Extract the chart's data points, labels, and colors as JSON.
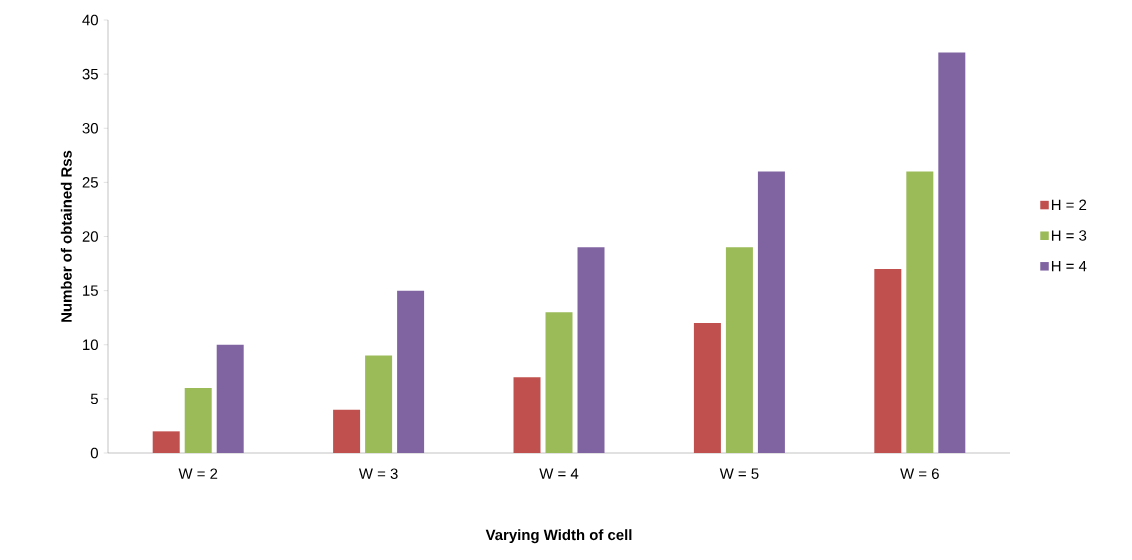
{
  "chart_data": {
    "type": "bar",
    "xlabel": "Varying Width of cell",
    "ylabel": "Number of obtained Rss",
    "categories": [
      "W = 2",
      "W = 3",
      "W = 4",
      "W = 5",
      "W = 6"
    ],
    "series": [
      {
        "name": "H = 2",
        "color": "#c0504d",
        "values": [
          2,
          4,
          7,
          12,
          17
        ]
      },
      {
        "name": "H = 3",
        "color": "#9bbb59",
        "values": [
          6,
          9,
          13,
          19,
          26
        ]
      },
      {
        "name": "H = 4",
        "color": "#8064a2",
        "values": [
          10,
          15,
          19,
          26,
          37
        ]
      }
    ],
    "ylim": [
      0,
      40
    ],
    "yticks": [
      0,
      5,
      10,
      15,
      20,
      25,
      30,
      35,
      40
    ],
    "legend": "right"
  }
}
